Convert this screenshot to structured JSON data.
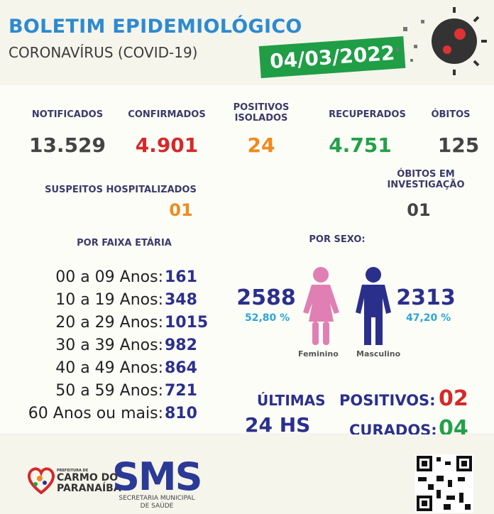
{
  "header": {
    "title": "BOLETIM EPIDEMIOLÓGICO",
    "subtitle": "CORONAVÍRUS (COVID-19)",
    "date": "04/03/2022"
  },
  "stats": [
    {
      "label": "NOTIFICADOS",
      "value": "13.529",
      "color": "#444444"
    },
    {
      "label": "CONFIRMADOS",
      "value": "4.901",
      "color": "#d62828"
    },
    {
      "label": "POSITIVOS ISOLADOS",
      "value": "24",
      "color": "#ef8a1f"
    },
    {
      "label": "RECUPERADOS",
      "value": "4.751",
      "color": "#23a04a"
    },
    {
      "label": "ÓBITOS",
      "value": "125",
      "color": "#444444"
    }
  ],
  "hospitalized": {
    "label": "SUSPEITOS HOSPITALIZADOS",
    "value": "01"
  },
  "deaths_investigation": {
    "label": "ÓBITOS EM INVESTIGAÇÃO",
    "value": "01"
  },
  "age": {
    "title": "POR FAIXA ETÁRIA",
    "rows": [
      {
        "range": "00 a 09 Anos:",
        "value": "161"
      },
      {
        "range": "10 a 19 Anos:",
        "value": "348"
      },
      {
        "range": "20 a 29 Anos:",
        "value": "1015"
      },
      {
        "range": "30 a 39 Anos:",
        "value": "982"
      },
      {
        "range": "40 a 49 Anos:",
        "value": "864"
      },
      {
        "range": "50 a 59 Anos:",
        "value": "721"
      },
      {
        "range": "60 Anos ou mais:",
        "value": "810"
      }
    ]
  },
  "sex": {
    "title": "POR SEXO:",
    "female": {
      "count": "2588",
      "pct": "52,80 %",
      "label": "Feminino"
    },
    "male": {
      "count": "2313",
      "pct": "47,20 %",
      "label": "Masculino"
    }
  },
  "last24": {
    "line1": "ÚLTIMAS",
    "line2": "24 HS",
    "positives_label": "POSITIVOS:",
    "positives": "02",
    "cured_label": "CURADOS:",
    "cured": "04"
  },
  "footer": {
    "prefeitura": "PREFEITURA DE",
    "city1": "CARMO DO",
    "city2": "PARANAÍBA",
    "sms": "SMS",
    "sms_full1": "SECRETARIA MUNICIPAL",
    "sms_full2": "DE SAÚDE"
  }
}
